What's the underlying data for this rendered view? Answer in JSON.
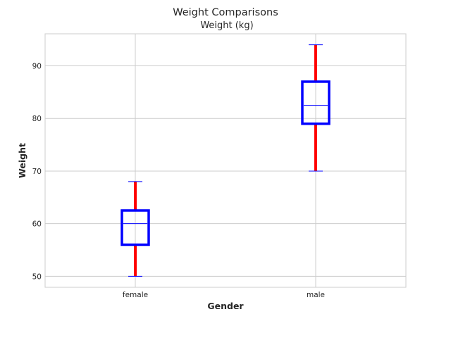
{
  "chart_data": {
    "type": "box",
    "title": "Weight Comparisons",
    "subtitle": "Weight (kg)",
    "xlabel": "Gender",
    "ylabel": "Weight",
    "categories": [
      "female",
      "male"
    ],
    "boxes": [
      {
        "category": "female",
        "whisker_low": 50,
        "q1": 56,
        "median": 60,
        "q3": 62.5,
        "whisker_high": 68
      },
      {
        "category": "male",
        "whisker_low": 70,
        "q1": 79,
        "median": 82.5,
        "q3": 87,
        "whisker_high": 94
      }
    ],
    "ylim": [
      47.9,
      96.1
    ],
    "yticks": [
      50,
      60,
      70,
      80,
      90
    ],
    "grid": true,
    "colors": {
      "box": "#0000ff",
      "median": "#0000ff",
      "whisker": "#ff0000",
      "cap": "#0000ff",
      "grid": "#cccccc",
      "frame": "#cccccc"
    }
  }
}
